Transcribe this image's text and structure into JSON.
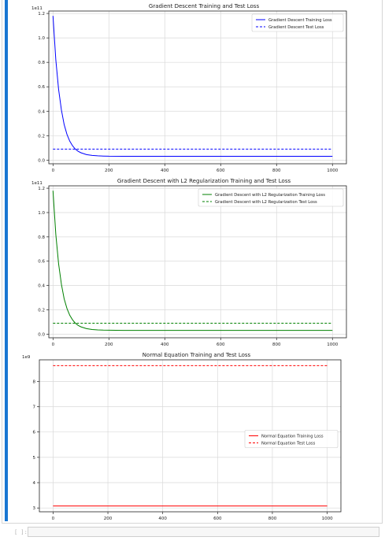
{
  "notebook": {
    "next_cell_prompt": "[ ]:"
  },
  "chart_data": [
    {
      "type": "line",
      "title": "Gradient Descent Training and Test Loss",
      "xlabel": "",
      "ylabel": "",
      "y_offset_label": "1e11",
      "xlim": [
        -15,
        1050
      ],
      "ylim": [
        -0.03,
        1.22
      ],
      "xticks": [
        0,
        200,
        400,
        600,
        800,
        1000
      ],
      "yticks": [
        0.0,
        0.2,
        0.4,
        0.6,
        0.8,
        1.0,
        1.2
      ],
      "grid": true,
      "legend_position": "top-right",
      "series": [
        {
          "name": "Gradient Descent Training Loss",
          "style": "solid",
          "color": "#0000ff",
          "x": [
            0,
            10,
            20,
            30,
            40,
            50,
            60,
            70,
            80,
            90,
            100,
            120,
            140,
            160,
            180,
            200,
            250,
            300,
            400,
            500,
            600,
            700,
            800,
            900,
            1000
          ],
          "y": [
            1.18,
            0.82,
            0.58,
            0.41,
            0.29,
            0.21,
            0.155,
            0.117,
            0.09,
            0.072,
            0.06,
            0.045,
            0.038,
            0.035,
            0.033,
            0.032,
            0.031,
            0.031,
            0.031,
            0.031,
            0.031,
            0.031,
            0.031,
            0.031,
            0.031
          ]
        },
        {
          "name": "Gradient Descent Test Loss",
          "style": "dashed",
          "color": "#0000ff",
          "x": [
            0,
            1000
          ],
          "y": [
            0.09,
            0.09
          ]
        }
      ]
    },
    {
      "type": "line",
      "title": "Gradient Descent with L2 Regularization Training and Test Loss",
      "xlabel": "",
      "ylabel": "",
      "y_offset_label": "1e11",
      "xlim": [
        -15,
        1050
      ],
      "ylim": [
        -0.03,
        1.22
      ],
      "xticks": [
        0,
        200,
        400,
        600,
        800,
        1000
      ],
      "yticks": [
        0.0,
        0.2,
        0.4,
        0.6,
        0.8,
        1.0,
        1.2
      ],
      "grid": true,
      "legend_position": "top-right",
      "series": [
        {
          "name": "Gradient Descent with L2 Regularization Training Loss",
          "style": "solid",
          "color": "#008000",
          "x": [
            0,
            10,
            20,
            30,
            40,
            50,
            60,
            70,
            80,
            90,
            100,
            120,
            140,
            160,
            180,
            200,
            250,
            300,
            400,
            500,
            600,
            700,
            800,
            900,
            1000
          ],
          "y": [
            1.18,
            0.82,
            0.58,
            0.41,
            0.29,
            0.21,
            0.155,
            0.117,
            0.09,
            0.072,
            0.06,
            0.045,
            0.038,
            0.035,
            0.033,
            0.032,
            0.031,
            0.031,
            0.031,
            0.031,
            0.031,
            0.031,
            0.031,
            0.031,
            0.031
          ]
        },
        {
          "name": "Gradient Descent with L2 Regularization Test Loss",
          "style": "dashed",
          "color": "#008000",
          "x": [
            0,
            1000
          ],
          "y": [
            0.09,
            0.09
          ]
        }
      ]
    },
    {
      "type": "line",
      "title": "Normal Equation Training and Test Loss",
      "xlabel": "",
      "ylabel": "",
      "y_offset_label": "1e9",
      "xlim": [
        -50,
        1050
      ],
      "ylim": [
        2.85,
        8.85
      ],
      "xticks": [
        0,
        200,
        400,
        600,
        800,
        1000
      ],
      "yticks": [
        3,
        4,
        5,
        6,
        7,
        8
      ],
      "grid": true,
      "legend_position": "center-right",
      "series": [
        {
          "name": "Normal Equation Training Loss",
          "style": "solid",
          "color": "#ff0000",
          "x": [
            0,
            1000
          ],
          "y": [
            3.08,
            3.08
          ]
        },
        {
          "name": "Normal Equation Test Loss",
          "style": "dashed",
          "color": "#ff0000",
          "x": [
            0,
            1000
          ],
          "y": [
            8.62,
            8.62
          ]
        }
      ]
    }
  ]
}
